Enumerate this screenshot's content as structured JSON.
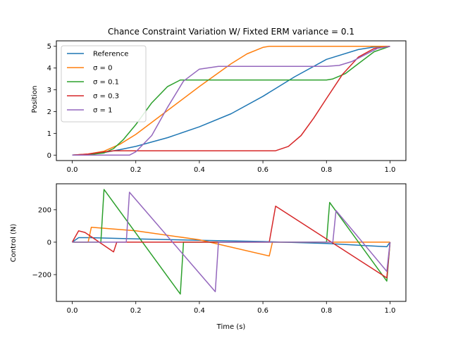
{
  "chart_data": [
    {
      "type": "line",
      "title": "Chance Constraint Variation W/ Fixted ERM variance = 0.1",
      "xlabel": "",
      "ylabel": "Position",
      "xlim": [
        -0.05,
        1.05
      ],
      "ylim": [
        -0.25,
        5.25
      ],
      "xticks": [
        0.0,
        0.2,
        0.4,
        0.6,
        0.8,
        1.0
      ],
      "xtick_labels": [
        "0.0",
        "0.2",
        "0.4",
        "0.6",
        "0.8",
        "1.0"
      ],
      "yticks": [
        0,
        1,
        2,
        3,
        4,
        5
      ],
      "ytick_labels": [
        "0",
        "1",
        "2",
        "3",
        "4",
        "5"
      ],
      "grid": false,
      "legend_position": "upper-left",
      "series": [
        {
          "name": "Reference",
          "color": "#1f77b4",
          "x": [
            0.0,
            0.05,
            0.1,
            0.15,
            0.2,
            0.3,
            0.4,
            0.5,
            0.6,
            0.7,
            0.8,
            0.9,
            0.95,
            1.0
          ],
          "y": [
            0.0,
            0.04,
            0.12,
            0.25,
            0.4,
            0.8,
            1.3,
            1.9,
            2.7,
            3.6,
            4.4,
            4.85,
            4.97,
            5.0
          ]
        },
        {
          "name": "σ = 0",
          "color": "#ff7f0e",
          "x": [
            0.0,
            0.05,
            0.1,
            0.15,
            0.2,
            0.3,
            0.4,
            0.5,
            0.55,
            0.6,
            0.62,
            0.7,
            0.8,
            0.9,
            1.0
          ],
          "y": [
            0.0,
            0.05,
            0.18,
            0.5,
            0.95,
            2.05,
            3.15,
            4.2,
            4.65,
            4.95,
            5.0,
            5.0,
            5.0,
            5.0,
            5.0
          ]
        },
        {
          "name": "σ = 0.1",
          "color": "#2ca02c",
          "x": [
            0.0,
            0.05,
            0.1,
            0.13,
            0.16,
            0.2,
            0.25,
            0.3,
            0.34,
            0.4,
            0.5,
            0.6,
            0.7,
            0.8,
            0.82,
            0.86,
            0.9,
            0.95,
            1.0
          ],
          "y": [
            0.0,
            0.02,
            0.1,
            0.3,
            0.7,
            1.4,
            2.4,
            3.15,
            3.45,
            3.45,
            3.45,
            3.45,
            3.45,
            3.45,
            3.5,
            3.75,
            4.2,
            4.75,
            5.0
          ]
        },
        {
          "name": "σ = 0.3",
          "color": "#d62728",
          "x": [
            0.0,
            0.05,
            0.1,
            0.13,
            0.2,
            0.3,
            0.4,
            0.5,
            0.6,
            0.64,
            0.68,
            0.72,
            0.76,
            0.8,
            0.85,
            0.9,
            0.95,
            1.0
          ],
          "y": [
            0.0,
            0.05,
            0.15,
            0.2,
            0.2,
            0.2,
            0.2,
            0.2,
            0.2,
            0.2,
            0.4,
            0.9,
            1.7,
            2.6,
            3.7,
            4.5,
            4.9,
            5.0
          ]
        },
        {
          "name": "σ = 1",
          "color": "#9467bd",
          "x": [
            0.0,
            0.1,
            0.18,
            0.2,
            0.25,
            0.3,
            0.35,
            0.4,
            0.46,
            0.5,
            0.6,
            0.7,
            0.8,
            0.84,
            0.88,
            0.92,
            0.96,
            1.0
          ],
          "y": [
            0.0,
            0.0,
            0.0,
            0.15,
            0.9,
            2.2,
            3.4,
            3.95,
            4.08,
            4.08,
            4.08,
            4.08,
            4.08,
            4.12,
            4.3,
            4.6,
            4.9,
            5.0
          ]
        }
      ]
    },
    {
      "type": "line",
      "title": "",
      "xlabel": "Time (s)",
      "ylabel": "Control (N)",
      "xlim": [
        -0.05,
        1.05
      ],
      "ylim": [
        -365,
        360
      ],
      "xticks": [
        0.0,
        0.2,
        0.4,
        0.6,
        0.8,
        1.0
      ],
      "xtick_labels": [
        "0.0",
        "0.2",
        "0.4",
        "0.6",
        "0.8",
        "1.0"
      ],
      "yticks": [
        -200,
        0,
        200
      ],
      "ytick_labels": [
        "−200",
        "0",
        "200"
      ],
      "grid": false,
      "series": [
        {
          "name": "Reference",
          "color": "#1f77b4",
          "x": [
            0.0,
            0.02,
            0.05,
            0.2,
            0.4,
            0.6,
            0.8,
            0.99,
            1.0
          ],
          "y": [
            0,
            28,
            28,
            20,
            12,
            4,
            -8,
            -28,
            0
          ]
        },
        {
          "name": "σ = 0",
          "color": "#ff7f0e",
          "x": [
            0.0,
            0.05,
            0.06,
            0.2,
            0.4,
            0.62,
            0.63,
            0.8,
            1.0
          ],
          "y": [
            0,
            0,
            92,
            70,
            15,
            -85,
            0,
            0,
            0
          ]
        },
        {
          "name": "σ = 0.1",
          "color": "#2ca02c",
          "x": [
            0.0,
            0.09,
            0.1,
            0.34,
            0.35,
            0.8,
            0.81,
            0.99,
            1.0
          ],
          "y": [
            0,
            0,
            325,
            -320,
            0,
            0,
            245,
            -240,
            0
          ]
        },
        {
          "name": "σ = 0.3",
          "color": "#d62728",
          "x": [
            0.0,
            0.02,
            0.04,
            0.13,
            0.14,
            0.62,
            0.64,
            0.99,
            1.0
          ],
          "y": [
            0,
            70,
            60,
            -60,
            0,
            0,
            222,
            -220,
            0
          ]
        },
        {
          "name": "σ = 1",
          "color": "#9467bd",
          "x": [
            0.0,
            0.17,
            0.18,
            0.45,
            0.46,
            0.82,
            0.83,
            0.99,
            1.0
          ],
          "y": [
            0,
            0,
            308,
            -305,
            0,
            0,
            195,
            -180,
            0
          ]
        }
      ]
    }
  ]
}
